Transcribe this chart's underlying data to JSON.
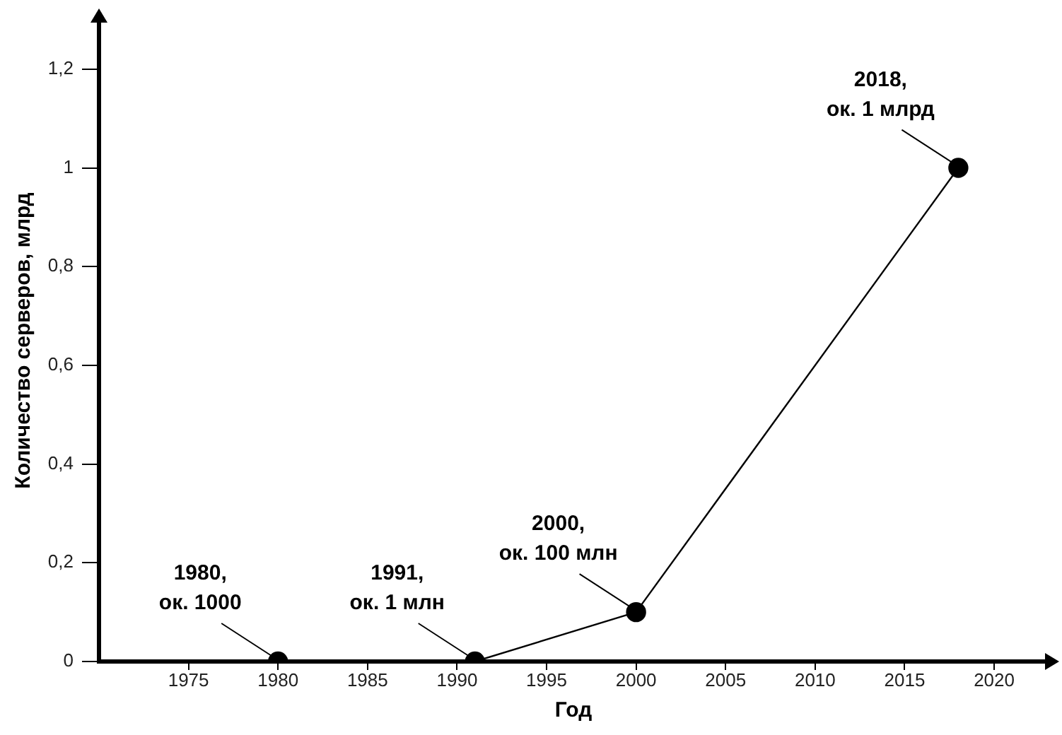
{
  "chart_data": {
    "type": "line",
    "xlabel": "Год",
    "ylabel": "Количество серверов, млрд",
    "x": [
      1980,
      1991,
      2000,
      2018
    ],
    "series": [
      {
        "color": "#000000",
        "values": [
          0,
          0,
          0.1,
          1
        ]
      }
    ],
    "xlim": [
      1970,
      2023
    ],
    "xticks": [
      1975,
      1980,
      1985,
      1990,
      1995,
      2000,
      2005,
      2010,
      2015,
      2020
    ],
    "ylim": [
      0,
      1.3
    ],
    "yticks": [
      0,
      {
        "value": 0.2,
        "label": "0,2"
      },
      {
        "value": 0.4,
        "label": "0,4"
      },
      {
        "value": 0.6,
        "label": "0,6"
      },
      {
        "value": 0.8,
        "label": "0,8"
      },
      1,
      {
        "value": 1.2,
        "label": "1,2"
      }
    ],
    "grid": false,
    "legend": false,
    "marker": "circle",
    "line_style": "solid",
    "annotations": [
      {
        "text": "1980,\nок. 1000",
        "x": 1980,
        "y": 0
      },
      {
        "text": "1991,\nок. 1 млн",
        "x": 1991,
        "y": 0
      },
      {
        "text": "2000,\nок. 100 млн",
        "x": 2000,
        "y": 0.1
      },
      {
        "text": "2018,\nок. 1 млрд",
        "x": 2018,
        "y": 1
      }
    ]
  }
}
